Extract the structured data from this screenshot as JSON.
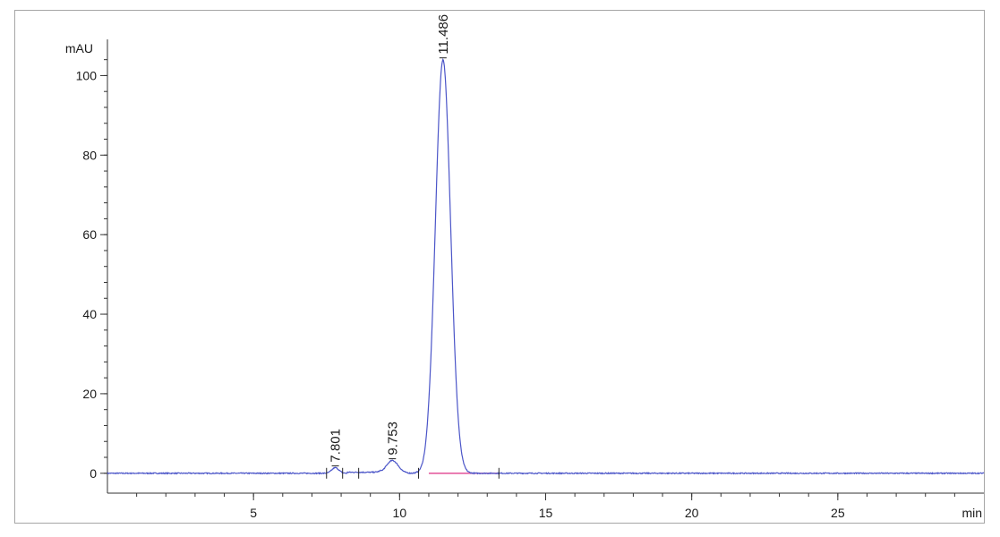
{
  "chart_data": {
    "type": "line",
    "title": "",
    "xlabel": "min",
    "ylabel": "mAU",
    "xlim": [
      0,
      30
    ],
    "ylim": [
      -5,
      110
    ],
    "x_major_ticks": [
      5,
      10,
      15,
      20,
      25
    ],
    "y_major_ticks": [
      0,
      20,
      40,
      60,
      80,
      100
    ],
    "x_minor_step": 1,
    "y_minor_step": 4,
    "grid": false,
    "legend": "none",
    "colors": {
      "signal": "#4b55c8",
      "baseline": "#e0408f",
      "axis": "#333333",
      "frame": "#a6a6a6"
    },
    "baseline_segments": [
      [
        11.0,
        13.4
      ]
    ],
    "integration_markers": [
      7.5,
      8.05,
      8.6,
      10.65,
      13.4
    ],
    "peaks": [
      {
        "rt": 7.801,
        "label": "7.801",
        "height": 1.4,
        "width": 0.12
      },
      {
        "rt": 9.753,
        "label": "9.753",
        "height": 3.2,
        "width": 0.2
      },
      {
        "rt": 11.486,
        "label": "11.486",
        "height": 104,
        "width": 0.26
      }
    ]
  }
}
